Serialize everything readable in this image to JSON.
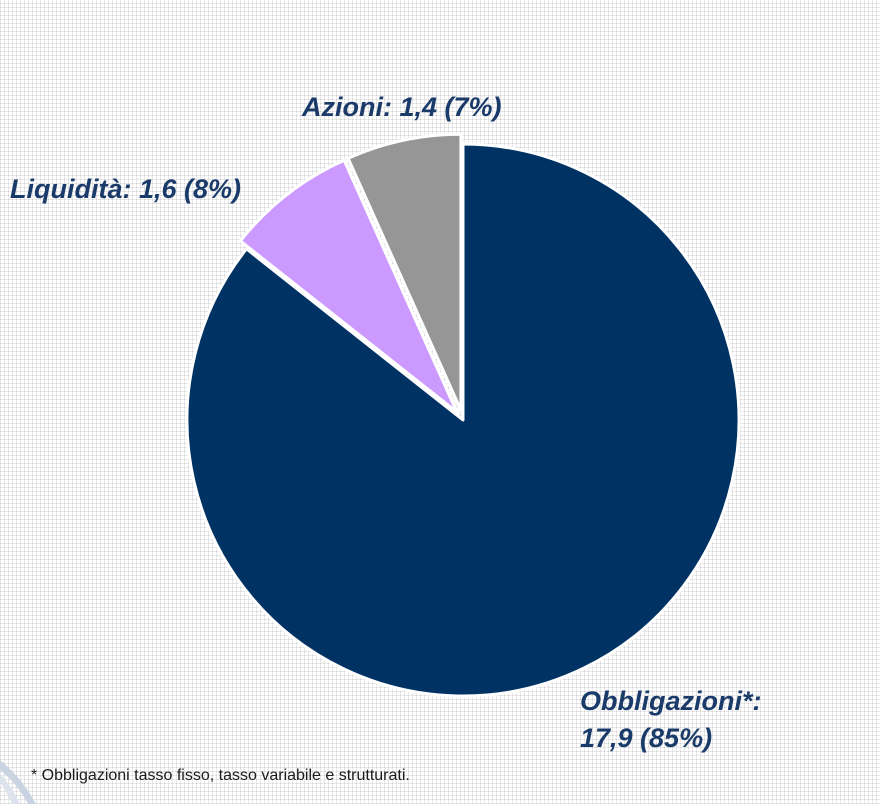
{
  "chart_data": {
    "type": "pie",
    "title": "",
    "slices": [
      {
        "name": "Obbligazioni*",
        "value": 17.9,
        "percent": 85,
        "color": "#003264",
        "label_lines": [
          "Obbligazioni*:",
          "17,9 (85%)"
        ]
      },
      {
        "name": "Liquidità",
        "value": 1.6,
        "percent": 8,
        "color": "#cc99ff",
        "label_lines": [
          "Liquidità: 1,6 (8%)"
        ]
      },
      {
        "name": "Azioni",
        "value": 1.4,
        "percent": 7,
        "color": "#969696",
        "label_lines": [
          "Azioni: 1,4 (7%)"
        ]
      }
    ],
    "start_angle_deg": 0,
    "direction": "clockwise",
    "label_color": "#1a3a6a",
    "legend": "none"
  },
  "footnote": "* Obbligazioni tasso fisso, tasso variabile e strutturati."
}
